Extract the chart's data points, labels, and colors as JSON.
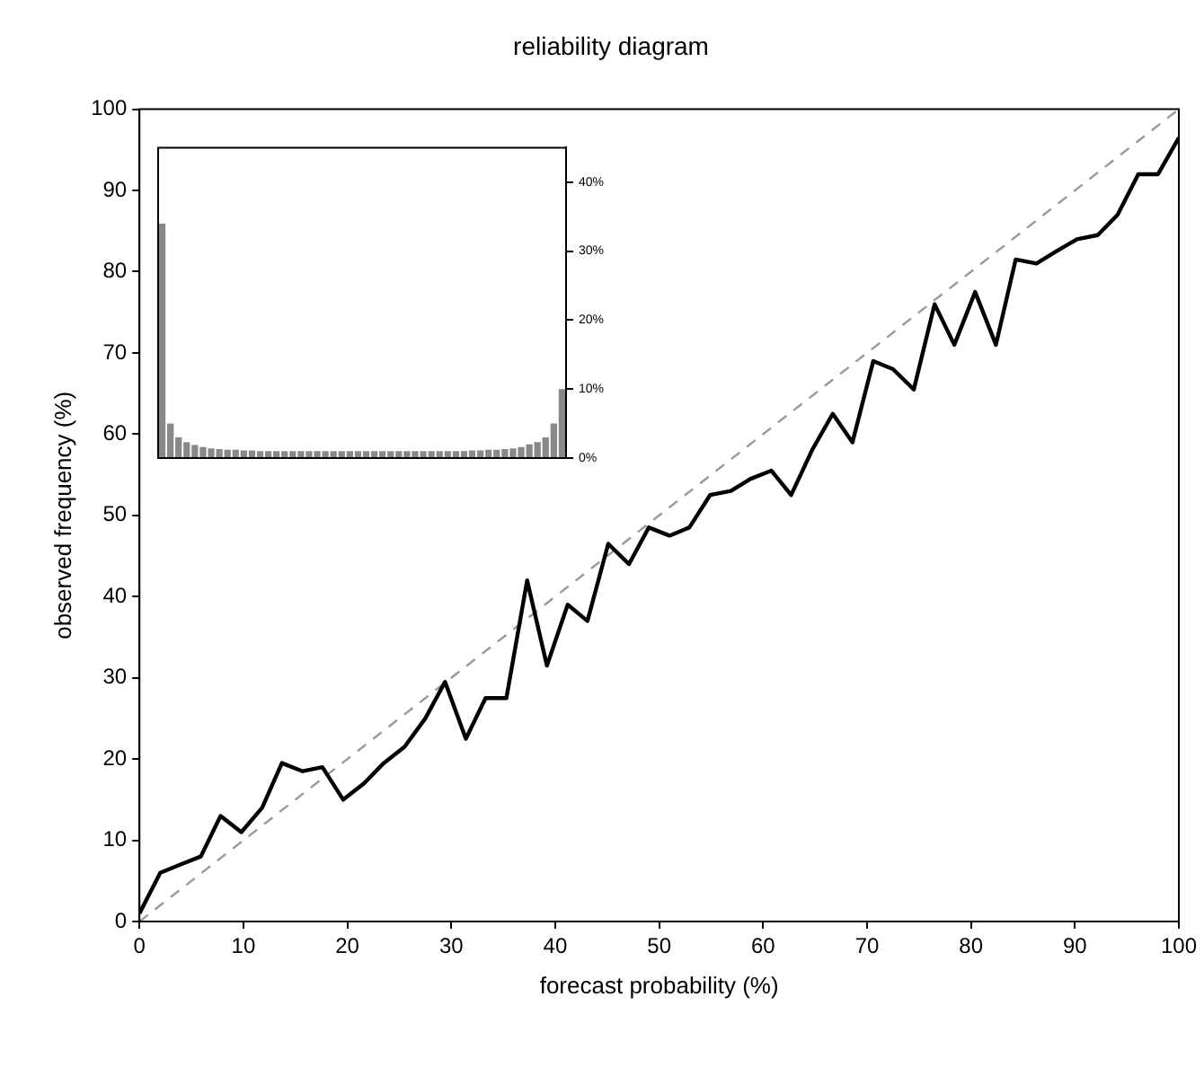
{
  "chart_data": [
    {
      "type": "line",
      "title": "reliability diagram",
      "xlabel": "forecast probability (%)",
      "ylabel": "observed frequency (%)",
      "xlim": [
        0,
        100
      ],
      "ylim": [
        0,
        100
      ],
      "xticks": [
        0,
        10,
        20,
        30,
        40,
        50,
        60,
        70,
        80,
        90,
        100
      ],
      "yticks": [
        0,
        10,
        20,
        30,
        40,
        50,
        60,
        70,
        80,
        90,
        100
      ],
      "grid": false,
      "legend": false,
      "marker": "none",
      "series": [
        {
          "color": "#000000",
          "line_style": "solid",
          "x": [
            0,
            2,
            3.9,
            5.9,
            7.8,
            9.8,
            11.8,
            13.7,
            15.7,
            17.6,
            19.6,
            21.6,
            23.5,
            25.5,
            27.5,
            29.4,
            31.4,
            33.3,
            35.3,
            37.3,
            39.2,
            41.2,
            43.1,
            45.1,
            47.1,
            49,
            51,
            52.9,
            54.9,
            56.9,
            58.8,
            60.8,
            62.7,
            64.7,
            66.7,
            68.6,
            70.6,
            72.5,
            74.5,
            76.5,
            78.4,
            80.4,
            82.4,
            84.3,
            86.3,
            88.2,
            90.2,
            92.2,
            94.1,
            96.1,
            98,
            100
          ],
          "values": [
            1,
            6,
            7,
            8,
            13,
            11,
            14,
            19.5,
            18.5,
            19,
            15,
            17,
            19.5,
            21.5,
            25,
            29.5,
            22.5,
            27.5,
            27.5,
            42,
            31.5,
            39,
            37,
            46.5,
            44,
            48.5,
            47.5,
            48.5,
            52.5,
            53,
            54.5,
            55.5,
            52.5,
            58,
            62.5,
            59,
            69,
            68,
            65.5,
            76,
            71,
            77.5,
            71,
            81.5,
            81,
            82.5,
            84,
            84.5,
            87,
            92,
            92,
            96.5
          ]
        },
        {
          "color": "#999999",
          "line_style": "dashed",
          "x": [
            0,
            100
          ],
          "values": [
            0,
            100
          ]
        }
      ]
    },
    {
      "type": "bar",
      "ylim": [
        0,
        45
      ],
      "yticks": [
        {
          "value": 0,
          "label": "0%"
        },
        {
          "value": 10,
          "label": "10%"
        },
        {
          "value": 20,
          "label": "20%"
        },
        {
          "value": 30,
          "label": "30%"
        },
        {
          "value": 40,
          "label": "40%"
        }
      ],
      "tick_labels": "y",
      "grid": false,
      "legend": false,
      "color": "#888888",
      "categories": [
        null,
        null,
        null,
        null,
        null,
        null,
        null,
        null,
        null,
        null,
        null,
        null,
        null,
        null,
        null,
        null,
        null,
        null,
        null,
        null,
        null,
        null,
        null,
        null,
        null,
        null,
        null,
        null,
        null,
        null,
        null,
        null,
        null,
        null,
        null,
        null,
        null,
        null,
        null,
        null,
        null,
        null,
        null,
        null,
        null,
        null,
        null,
        null,
        null,
        null
      ],
      "values": [
        34,
        5,
        3,
        2.3,
        1.9,
        1.6,
        1.4,
        1.3,
        1.2,
        1.2,
        1.1,
        1.1,
        1,
        1,
        1,
        1,
        1,
        1,
        1,
        1,
        1,
        1,
        1,
        1,
        1,
        1,
        1,
        1,
        1,
        1,
        1,
        1,
        1,
        1,
        1,
        1,
        1,
        1,
        1.1,
        1.1,
        1.2,
        1.2,
        1.3,
        1.4,
        1.6,
        2,
        2.3,
        3,
        5,
        10
      ]
    }
  ]
}
